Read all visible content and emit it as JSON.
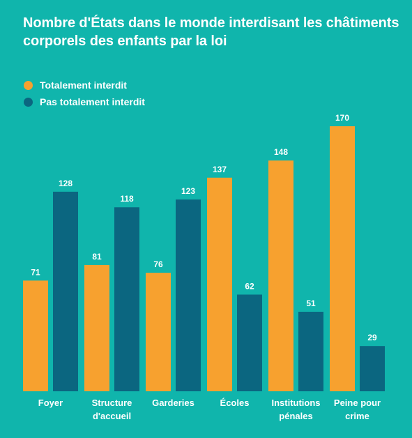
{
  "chart_data": {
    "type": "bar",
    "title": "Nombre d'États dans le monde interdisant les châtiments corporels des enfants par la loi",
    "categories": [
      [
        "Foyer"
      ],
      [
        "Structure",
        "d'accueil"
      ],
      [
        "Garderies"
      ],
      [
        "Écoles"
      ],
      [
        "Institutions",
        "pénales"
      ],
      [
        "Peine pour",
        "crime"
      ]
    ],
    "series": [
      {
        "name": "Totalement interdit",
        "color": "#f7a12f",
        "values": [
          71,
          81,
          76,
          137,
          148,
          170
        ]
      },
      {
        "name": "Pas totalement interdit",
        "color": "#0b6680",
        "values": [
          128,
          118,
          123,
          62,
          51,
          29
        ]
      }
    ],
    "ylim": [
      0,
      170
    ],
    "grid": false,
    "legend": "top-left"
  }
}
